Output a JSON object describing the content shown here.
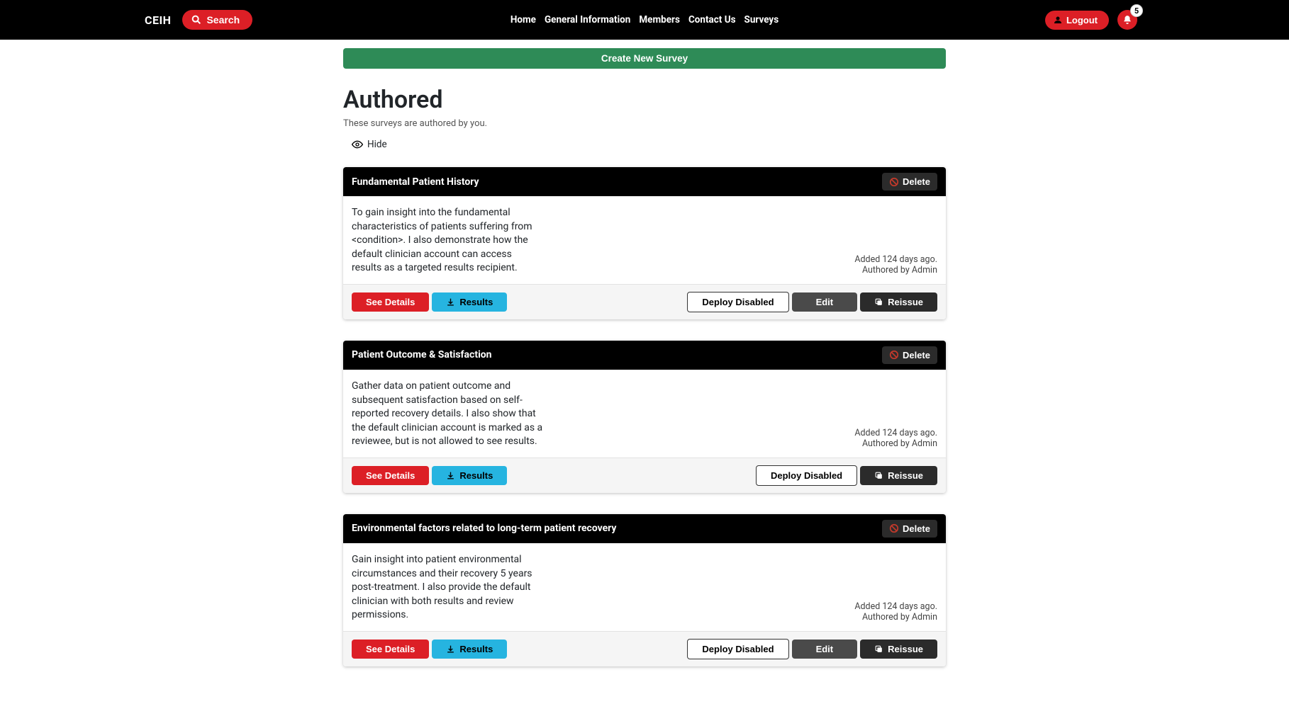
{
  "header": {
    "brand": "CEIH",
    "search_label": "Search",
    "nav": [
      "Home",
      "General Information",
      "Members",
      "Contact Us",
      "Surveys"
    ],
    "logout_label": "Logout",
    "notif_count": "5"
  },
  "create_label": "Create New Survey",
  "section": {
    "title": "Authored",
    "desc": "These surveys are authored by you.",
    "hide_label": "Hide"
  },
  "buttons": {
    "delete": "Delete",
    "see_details": "See Details",
    "results": "Results",
    "deploy_disabled": "Deploy Disabled",
    "edit": "Edit",
    "reissue": "Reissue"
  },
  "surveys": [
    {
      "title": "Fundamental Patient History",
      "desc": "To gain insight into the fundamental characteristics of patients suffering from <condition>. I also demonstrate how the default clinician account can access results as a targeted results recipient.",
      "added": "Added 124 days ago.",
      "authored": "Authored by Admin",
      "show_edit": true
    },
    {
      "title": "Patient Outcome & Satisfaction",
      "desc": "Gather data on patient outcome and subsequent satisfaction based on self-reported recovery details. I also show that the default clinician account is marked as a reviewee, but is not allowed to see results.",
      "added": "Added 124 days ago.",
      "authored": "Authored by Admin",
      "show_edit": false
    },
    {
      "title": "Environmental factors related to long-term patient recovery",
      "desc": "Gain insight into patient environmental circumstances and their recovery 5 years post-treatment. I also provide the default clinician with both results and review permissions.",
      "added": "Added 124 days ago.",
      "authored": "Authored by Admin",
      "show_edit": true
    }
  ]
}
